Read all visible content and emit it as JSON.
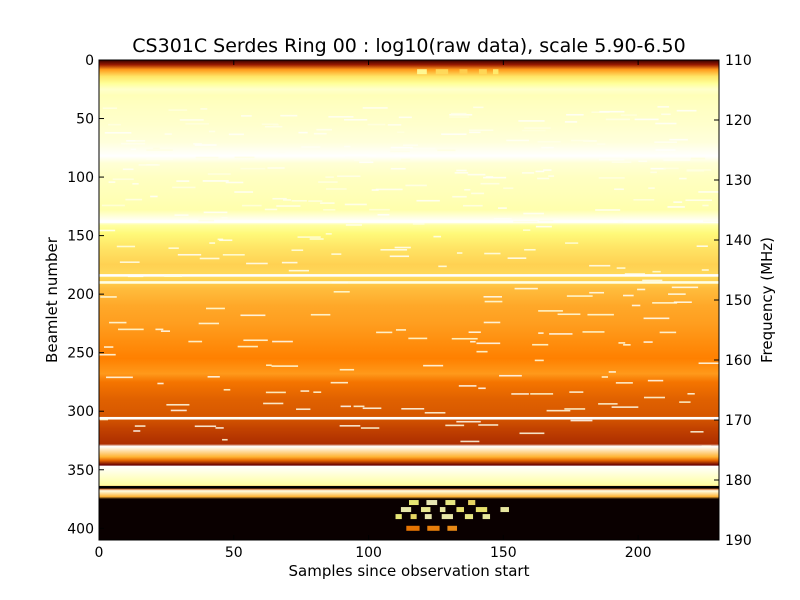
{
  "chart_data": {
    "type": "heatmap",
    "title": "CS301C Serdes Ring 00 : log10(raw data), scale 5.90-6.50",
    "xlabel": "Samples since observation start",
    "ylabel": "Beamlet number",
    "ylabel_right": "Frequency (MHz)",
    "colormap": "afmhot",
    "color_range": [
      5.9,
      6.5
    ],
    "xlim": [
      0,
      230
    ],
    "ylim": [
      0,
      410
    ],
    "y_inverted": true,
    "right_ylim": [
      110,
      190
    ],
    "x_ticks": [
      0,
      50,
      100,
      150,
      200
    ],
    "y_ticks": [
      0,
      50,
      100,
      150,
      200,
      250,
      300,
      350,
      400
    ],
    "right_ticks": [
      110,
      120,
      130,
      140,
      150,
      160,
      170,
      180,
      190
    ],
    "beamlet_levels": [
      [
        0,
        0.1
      ],
      [
        4,
        0.3
      ],
      [
        8,
        0.55
      ],
      [
        14,
        0.7
      ],
      [
        20,
        0.8
      ],
      [
        25,
        0.9
      ],
      [
        30,
        0.86
      ],
      [
        40,
        0.88
      ],
      [
        55,
        0.9
      ],
      [
        70,
        0.93
      ],
      [
        82,
        1.0
      ],
      [
        88,
        0.92
      ],
      [
        100,
        0.88
      ],
      [
        115,
        0.86
      ],
      [
        128,
        0.84
      ],
      [
        138,
        1.0
      ],
      [
        141,
        0.82
      ],
      [
        148,
        0.74
      ],
      [
        160,
        0.7
      ],
      [
        175,
        0.66
      ],
      [
        185,
        0.68
      ],
      [
        195,
        0.62
      ],
      [
        210,
        0.58
      ],
      [
        225,
        0.56
      ],
      [
        240,
        0.53
      ],
      [
        255,
        0.5
      ],
      [
        268,
        0.55
      ],
      [
        275,
        0.48
      ],
      [
        290,
        0.44
      ],
      [
        305,
        0.42
      ],
      [
        315,
        0.38
      ],
      [
        328,
        0.34
      ],
      [
        330,
        1.0
      ],
      [
        339,
        0.6
      ],
      [
        342,
        0.45
      ],
      [
        346,
        0.2
      ],
      [
        347,
        1.0
      ],
      [
        363,
        0.82
      ],
      [
        366,
        0.4
      ],
      [
        368,
        0.95
      ],
      [
        373,
        0.6
      ],
      [
        375,
        0.02
      ],
      [
        410,
        0.02
      ]
    ],
    "highlight_lines": [
      {
        "beamlet": 138,
        "level": 1.0
      },
      {
        "beamlet": 184,
        "level": 1.0
      },
      {
        "beamlet": 190,
        "level": 0.95
      },
      {
        "beamlet": 306,
        "level": 1.0
      },
      {
        "beamlet": 365,
        "level": 0.0
      }
    ],
    "rfi_bursts": [
      {
        "beamlet": 10,
        "x_start": 118,
        "x_end": 150,
        "level": 0.92
      },
      {
        "beamlet": 378,
        "x_start": 115,
        "x_end": 140,
        "level": 0.95
      },
      {
        "beamlet": 384,
        "x_start": 112,
        "x_end": 150,
        "level": 0.98
      },
      {
        "beamlet": 390,
        "x_start": 110,
        "x_end": 148,
        "level": 1.0
      },
      {
        "beamlet": 400,
        "x_start": 114,
        "x_end": 135,
        "level": 0.6
      }
    ]
  }
}
